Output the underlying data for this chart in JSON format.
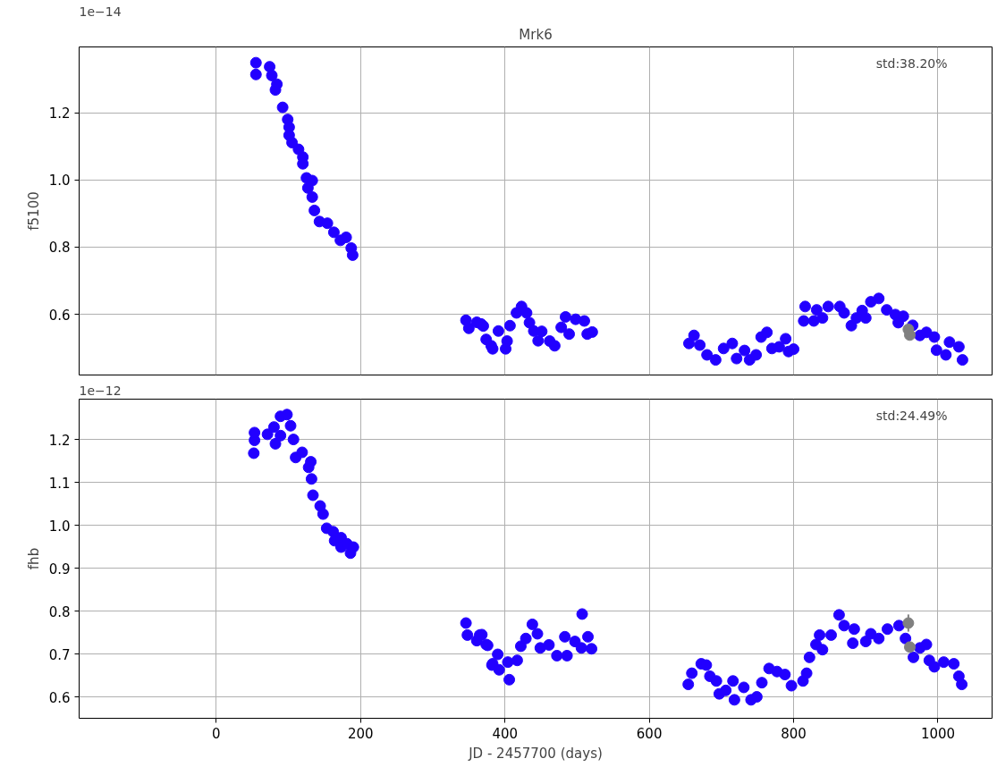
{
  "chart_data": [
    {
      "type": "scatter",
      "title": "Mrk6",
      "ylabel": "f5100",
      "annotations": [
        "1e−14",
        "std:38.20%"
      ],
      "marker": "circle",
      "grid": true,
      "tick_labels": "y",
      "xlim": [
        -190,
        1075
      ],
      "xticks": [
        0,
        200,
        400,
        600,
        800,
        1000
      ],
      "ylim": [
        0.419,
        1.396
      ],
      "yticks": [
        0.6,
        0.8,
        {
          "value": 1.0,
          "label": "1.0"
        },
        1.2
      ],
      "series": [
        {
          "color": "#2200ff",
          "x": [
            55,
            55,
            74,
            77,
            84,
            82,
            92,
            99,
            101,
            101,
            105,
            114,
            120,
            120,
            125,
            133,
            127,
            133,
            136,
            143,
            154,
            163,
            172,
            180,
            187,
            189,
            346,
            350,
            361,
            370,
            374,
            381,
            367,
            383,
            391,
            401,
            403,
            407,
            416,
            423,
            430,
            434,
            440,
            446,
            451,
            462,
            469,
            478,
            484,
            489,
            498,
            510,
            514,
            521,
            655,
            662,
            670,
            680,
            692,
            703,
            715,
            721,
            732,
            739,
            748,
            755,
            763,
            770,
            780,
            789,
            793,
            800,
            816,
            814,
            828,
            832,
            840,
            848,
            864,
            870,
            880,
            887,
            895,
            900,
            907,
            918,
            929,
            941,
            945,
            952,
            965,
            975,
            984,
            995,
            998,
            1011,
            1016,
            1029,
            1034
          ],
          "values": [
            1.349,
            1.314,
            1.337,
            1.311,
            1.285,
            1.268,
            1.216,
            1.18,
            1.157,
            1.133,
            1.111,
            1.091,
            1.068,
            1.048,
            1.006,
            0.998,
            0.976,
            0.949,
            0.909,
            0.876,
            0.871,
            0.844,
            0.82,
            0.829,
            0.797,
            0.776,
            0.582,
            0.558,
            0.576,
            0.565,
            0.525,
            0.506,
            0.571,
            0.497,
            0.55,
            0.497,
            0.52,
            0.566,
            0.604,
            0.623,
            0.604,
            0.575,
            0.55,
            0.521,
            0.549,
            0.52,
            0.506,
            0.561,
            0.592,
            0.541,
            0.585,
            0.58,
            0.541,
            0.547,
            0.513,
            0.537,
            0.508,
            0.479,
            0.464,
            0.498,
            0.513,
            0.468,
            0.492,
            0.464,
            0.479,
            0.532,
            0.546,
            0.498,
            0.503,
            0.527,
            0.489,
            0.496,
            0.623,
            0.58,
            0.58,
            0.613,
            0.589,
            0.623,
            0.623,
            0.604,
            0.566,
            0.589,
            0.611,
            0.589,
            0.637,
            0.647,
            0.613,
            0.599,
            0.575,
            0.594,
            0.567,
            0.537,
            0.546,
            0.532,
            0.493,
            0.479,
            0.517,
            0.503,
            0.464
          ]
        },
        {
          "color": "#808080",
          "x": [
            959,
            961
          ],
          "values": [
            0.555,
            0.538
          ]
        }
      ]
    },
    {
      "type": "scatter",
      "xlabel": "JD - 2457700 (days)",
      "ylabel": "fhb",
      "annotations": [
        "1e−12",
        "std:24.49%"
      ],
      "marker": "circle",
      "grid": true,
      "xlim": [
        -190,
        1075
      ],
      "xticks": [
        0,
        200,
        400,
        600,
        800,
        1000
      ],
      "ylim": [
        0.55,
        1.294
      ],
      "yticks": [
        0.6,
        0.7,
        0.8,
        0.9,
        {
          "value": 1.0,
          "label": "1.0"
        },
        1.1,
        1.2
      ],
      "series": [
        {
          "color": "#2200ff",
          "x": [
            52,
            53,
            53,
            71,
            80,
            82,
            89,
            89,
            98,
            103,
            107,
            110,
            119,
            131,
            128,
            132,
            134,
            144,
            148,
            153,
            162,
            164,
            173,
            173,
            181,
            186,
            190,
            346,
            348,
            361,
            368,
            376,
            383,
            365,
            374,
            382,
            390,
            392,
            404,
            406,
            417,
            422,
            429,
            438,
            445,
            449,
            461,
            472,
            483,
            486,
            497,
            506,
            507,
            515,
            520,
            654,
            659,
            672,
            679,
            684,
            693,
            697,
            706,
            716,
            718,
            731,
            741,
            749,
            756,
            766,
            777,
            788,
            797,
            813,
            818,
            822,
            831,
            836,
            840,
            852,
            863,
            870,
            882,
            884,
            900,
            907,
            918,
            930,
            946,
            955,
            966,
            975,
            984,
            988,
            995,
            1008,
            1022,
            1029,
            1033
          ],
          "values": [
            1.168,
            1.198,
            1.216,
            1.212,
            1.229,
            1.19,
            1.209,
            1.254,
            1.258,
            1.232,
            1.2,
            1.158,
            1.17,
            1.148,
            1.135,
            1.108,
            1.07,
            1.045,
            1.026,
            0.993,
            0.985,
            0.964,
            0.971,
            0.949,
            0.957,
            0.935,
            0.949,
            0.772,
            0.744,
            0.731,
            0.745,
            0.72,
            0.677,
            0.744,
            0.722,
            0.674,
            0.699,
            0.663,
            0.681,
            0.64,
            0.685,
            0.718,
            0.736,
            0.769,
            0.747,
            0.714,
            0.721,
            0.696,
            0.74,
            0.696,
            0.729,
            0.714,
            0.793,
            0.74,
            0.712,
            0.629,
            0.655,
            0.677,
            0.674,
            0.648,
            0.637,
            0.607,
            0.615,
            0.637,
            0.593,
            0.622,
            0.593,
            0.6,
            0.633,
            0.666,
            0.659,
            0.652,
            0.626,
            0.637,
            0.655,
            0.692,
            0.722,
            0.744,
            0.71,
            0.744,
            0.791,
            0.766,
            0.725,
            0.758,
            0.729,
            0.747,
            0.736,
            0.758,
            0.766,
            0.736,
            0.692,
            0.714,
            0.722,
            0.685,
            0.67,
            0.681,
            0.677,
            0.648,
            0.629
          ]
        },
        {
          "color": "#808080",
          "x": [
            959,
            961
          ],
          "values": [
            0.772,
            0.716
          ],
          "errors": [
            0.02,
            null
          ]
        }
      ]
    }
  ]
}
